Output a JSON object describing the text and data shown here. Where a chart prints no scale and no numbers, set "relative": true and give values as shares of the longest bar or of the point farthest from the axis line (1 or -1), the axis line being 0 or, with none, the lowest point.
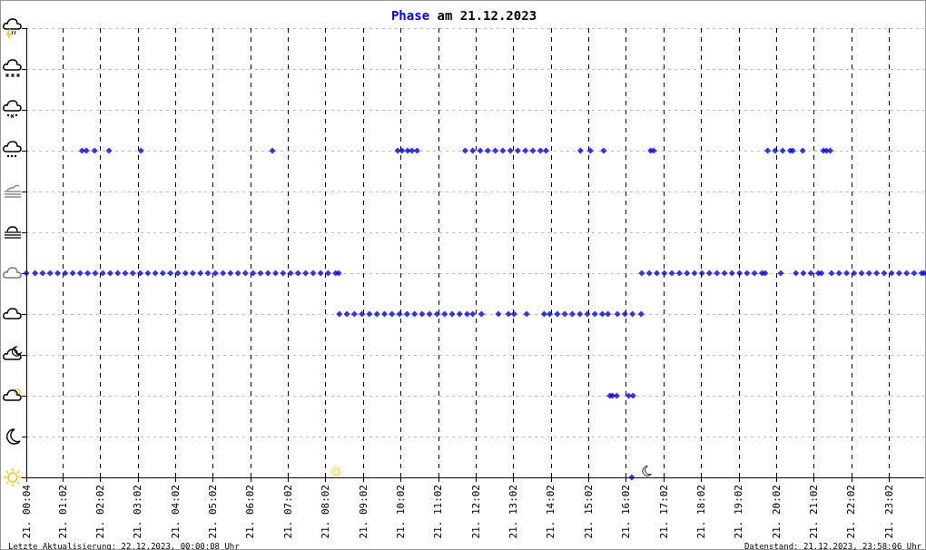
{
  "chart_data": {
    "type": "scatter",
    "title": "Phase am 21.12.2023",
    "annotations": [
      "Letzte Aktualisierung: 22.12.2023, 00:00:08 Uhr",
      "Datenstand: 21.12.2023, 23:58:06 Uhr"
    ],
    "xlim": [
      "2023-12-21T00:04",
      "2023-12-21T23:58"
    ],
    "xticks": [
      {
        "value": "2023-12-21T00:04",
        "label": "21. 00:04"
      },
      {
        "value": "2023-12-21T01:02",
        "label": "21. 01:02"
      },
      {
        "value": "2023-12-21T02:02",
        "label": "21. 02:02"
      },
      {
        "value": "2023-12-21T03:02",
        "label": "21. 03:02"
      },
      {
        "value": "2023-12-21T04:02",
        "label": "21. 04:02"
      },
      {
        "value": "2023-12-21T05:02",
        "label": "21. 05:02"
      },
      {
        "value": "2023-12-21T06:02",
        "label": "21. 06:02"
      },
      {
        "value": "2023-12-21T07:02",
        "label": "21. 07:02"
      },
      {
        "value": "2023-12-21T08:02",
        "label": "21. 08:02"
      },
      {
        "value": "2023-12-21T09:02",
        "label": "21. 09:02"
      },
      {
        "value": "2023-12-21T10:02",
        "label": "21. 10:02"
      },
      {
        "value": "2023-12-21T11:02",
        "label": "21. 11:02"
      },
      {
        "value": "2023-12-21T12:02",
        "label": "21. 12:02"
      },
      {
        "value": "2023-12-21T13:02",
        "label": "21. 13:02"
      },
      {
        "value": "2023-12-21T14:02",
        "label": "21. 14:02"
      },
      {
        "value": "2023-12-21T15:02",
        "label": "21. 15:02"
      },
      {
        "value": "2023-12-21T16:02",
        "label": "21. 16:02"
      },
      {
        "value": "2023-12-21T17:02",
        "label": "21. 17:02"
      },
      {
        "value": "2023-12-21T18:02",
        "label": "21. 18:02"
      },
      {
        "value": "2023-12-21T19:02",
        "label": "21. 19:02"
      },
      {
        "value": "2023-12-21T20:02",
        "label": "21. 20:02"
      },
      {
        "value": "2023-12-21T21:02",
        "label": "21. 21:02"
      },
      {
        "value": "2023-12-21T22:02",
        "label": "21. 22:02"
      },
      {
        "value": "2023-12-21T23:02",
        "label": "21. 23:02"
      }
    ],
    "relative": true,
    "grid": true,
    "marker": "diamond",
    "series": [
      {
        "color": "#0000ff",
        "x": [
          "2023-12-21T01:33",
          "2023-12-21T01:40",
          "2023-12-21T01:53",
          "2023-12-21T02:16",
          "2023-12-21T03:07",
          "2023-12-21T06:37",
          "2023-12-21T09:57",
          "2023-12-21T10:04",
          "2023-12-21T10:13",
          "2023-12-21T10:20",
          "2023-12-21T10:28",
          "2023-12-21T11:45",
          "2023-12-21T11:57",
          "2023-12-21T12:09",
          "2023-12-21T12:21",
          "2023-12-21T12:33",
          "2023-12-21T12:45",
          "2023-12-21T12:57",
          "2023-12-21T13:09",
          "2023-12-21T13:21",
          "2023-12-21T13:33",
          "2023-12-21T13:45",
          "2023-12-21T13:54",
          "2023-12-21T14:49",
          "2023-12-21T15:05",
          "2023-12-21T15:26",
          "2023-12-21T16:41",
          "2023-12-21T16:46",
          "2023-12-21T19:48",
          "2023-12-21T20:00",
          "2023-12-21T20:12",
          "2023-12-21T20:24",
          "2023-12-21T20:28",
          "2023-12-21T20:44",
          "2023-12-21T21:17",
          "2023-12-21T21:22",
          "2023-12-21T21:28"
        ],
        "values": [
          1,
          1,
          1,
          1,
          1,
          1,
          1,
          1,
          1,
          1,
          1,
          1,
          1,
          1,
          1,
          1,
          1,
          1,
          1,
          1,
          1,
          1,
          1,
          1,
          1,
          1,
          1,
          1,
          1,
          1,
          1,
          1,
          1,
          1,
          1,
          1,
          1
        ]
      },
      {
        "color": "#0000ff",
        "x": [
          "2023-12-21T00:04",
          "2023-12-21T00:18",
          "2023-12-21T00:30",
          "2023-12-21T00:42",
          "2023-12-21T00:54",
          "2023-12-21T01:06",
          "2023-12-21T01:18",
          "2023-12-21T01:30",
          "2023-12-21T01:42",
          "2023-12-21T01:54",
          "2023-12-21T02:06",
          "2023-12-21T02:18",
          "2023-12-21T02:30",
          "2023-12-21T02:42",
          "2023-12-21T02:54",
          "2023-12-21T03:06",
          "2023-12-21T03:18",
          "2023-12-21T03:30",
          "2023-12-21T03:42",
          "2023-12-21T03:54",
          "2023-12-21T04:06",
          "2023-12-21T04:18",
          "2023-12-21T04:30",
          "2023-12-21T04:42",
          "2023-12-21T04:54",
          "2023-12-21T05:06",
          "2023-12-21T05:18",
          "2023-12-21T05:30",
          "2023-12-21T05:42",
          "2023-12-21T05:54",
          "2023-12-21T06:06",
          "2023-12-21T06:18",
          "2023-12-21T06:30",
          "2023-12-21T06:42",
          "2023-12-21T06:54",
          "2023-12-21T07:06",
          "2023-12-21T07:18",
          "2023-12-21T07:30",
          "2023-12-21T07:42",
          "2023-12-21T07:54",
          "2023-12-21T08:06",
          "2023-12-21T08:18",
          "2023-12-21T08:23",
          "2023-12-21T16:27",
          "2023-12-21T16:39",
          "2023-12-21T16:51",
          "2023-12-21T17:03",
          "2023-12-21T17:15",
          "2023-12-21T17:27",
          "2023-12-21T17:39",
          "2023-12-21T17:51",
          "2023-12-21T18:03",
          "2023-12-21T18:15",
          "2023-12-21T18:27",
          "2023-12-21T18:39",
          "2023-12-21T18:51",
          "2023-12-21T19:03",
          "2023-12-21T19:15",
          "2023-12-21T19:27",
          "2023-12-21T19:39",
          "2023-12-21T19:44",
          "2023-12-21T20:09",
          "2023-12-21T20:33",
          "2023-12-21T20:45",
          "2023-12-21T20:57",
          "2023-12-21T21:09",
          "2023-12-21T21:14",
          "2023-12-21T21:30",
          "2023-12-21T21:42",
          "2023-12-21T21:54",
          "2023-12-21T22:06",
          "2023-12-21T22:18",
          "2023-12-21T22:30",
          "2023-12-21T22:42",
          "2023-12-21T22:54",
          "2023-12-21T23:06",
          "2023-12-21T23:18",
          "2023-12-21T23:30",
          "2023-12-21T23:42",
          "2023-12-21T23:54",
          "2023-12-21T23:58"
        ],
        "values": [
          0.625,
          0.625,
          0.625,
          0.625,
          0.625,
          0.625,
          0.625,
          0.625,
          0.625,
          0.625,
          0.625,
          0.625,
          0.625,
          0.625,
          0.625,
          0.625,
          0.625,
          0.625,
          0.625,
          0.625,
          0.625,
          0.625,
          0.625,
          0.625,
          0.625,
          0.625,
          0.625,
          0.625,
          0.625,
          0.625,
          0.625,
          0.625,
          0.625,
          0.625,
          0.625,
          0.625,
          0.625,
          0.625,
          0.625,
          0.625,
          0.625,
          0.625,
          0.625,
          0.625,
          0.625,
          0.625,
          0.625,
          0.625,
          0.625,
          0.625,
          0.625,
          0.625,
          0.625,
          0.625,
          0.625,
          0.625,
          0.625,
          0.625,
          0.625,
          0.625,
          0.625,
          0.625,
          0.625,
          0.625,
          0.625,
          0.625,
          0.625,
          0.625,
          0.625,
          0.625,
          0.625,
          0.625,
          0.625,
          0.625,
          0.625,
          0.625,
          0.625,
          0.625,
          0.625,
          0.625,
          0.625
        ]
      },
      {
        "color": "#0000ff",
        "x": [
          "2023-12-21T08:24",
          "2023-12-21T08:36",
          "2023-12-21T08:48",
          "2023-12-21T09:00",
          "2023-12-21T09:12",
          "2023-12-21T09:24",
          "2023-12-21T09:36",
          "2023-12-21T09:48",
          "2023-12-21T10:00",
          "2023-12-21T10:12",
          "2023-12-21T10:24",
          "2023-12-21T10:36",
          "2023-12-21T10:48",
          "2023-12-21T11:00",
          "2023-12-21T11:12",
          "2023-12-21T11:24",
          "2023-12-21T11:36",
          "2023-12-21T11:48",
          "2023-12-21T11:57",
          "2023-12-21T12:11",
          "2023-12-21T12:38",
          "2023-12-21T12:54",
          "2023-12-21T13:03",
          "2023-12-21T13:23",
          "2023-12-21T13:51",
          "2023-12-21T14:00",
          "2023-12-21T14:12",
          "2023-12-21T14:24",
          "2023-12-21T14:36",
          "2023-12-21T14:48",
          "2023-12-21T15:00",
          "2023-12-21T15:12",
          "2023-12-21T15:24",
          "2023-12-21T15:33",
          "2023-12-21T15:48",
          "2023-12-21T16:00",
          "2023-12-21T16:12",
          "2023-12-21T16:26"
        ],
        "values": [
          0.5,
          0.5,
          0.5,
          0.5,
          0.5,
          0.5,
          0.5,
          0.5,
          0.5,
          0.5,
          0.5,
          0.5,
          0.5,
          0.5,
          0.5,
          0.5,
          0.5,
          0.5,
          0.5,
          0.5,
          0.5,
          0.5,
          0.5,
          0.5,
          0.5,
          0.5,
          0.5,
          0.5,
          0.5,
          0.5,
          0.5,
          0.5,
          0.5,
          0.5,
          0.5,
          0.5,
          0.5,
          0.5
        ]
      },
      {
        "color": "#0000ff",
        "x": [
          "2023-12-21T15:36",
          "2023-12-21T15:40",
          "2023-12-21T15:47",
          "2023-12-21T16:06",
          "2023-12-21T16:13",
          "2023-12-21T16:11"
        ],
        "values": [
          0.25,
          0.25,
          0.25,
          0.25,
          0.25,
          0
        ]
      }
    ]
  }
}
